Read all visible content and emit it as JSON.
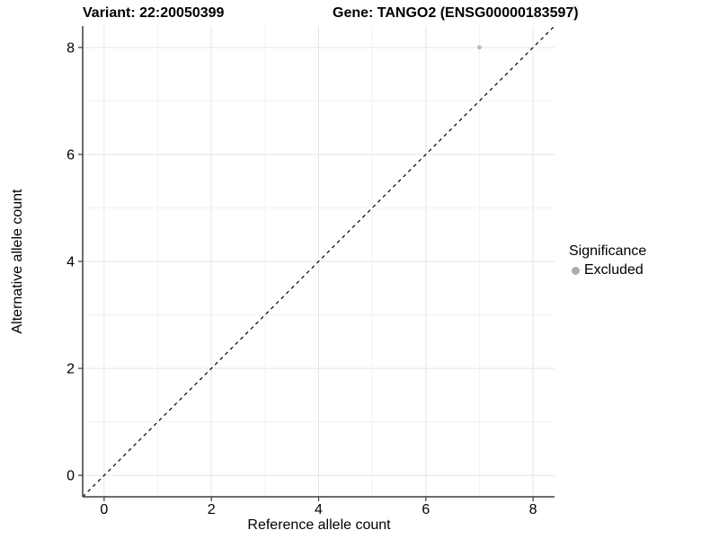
{
  "chart_data": {
    "type": "scatter",
    "title_left": "Variant: 22:20050399",
    "title_right": "Gene: TANGO2 (ENSG00000183597)",
    "xlabel": "Reference allele count",
    "ylabel": "Alternative allele count",
    "xlim": [
      -0.4,
      8.4
    ],
    "ylim": [
      -0.4,
      8.4
    ],
    "x_ticks": [
      0,
      2,
      4,
      6,
      8
    ],
    "y_ticks": [
      0,
      2,
      4,
      6,
      8
    ],
    "minor_grid_positions": [
      1,
      3,
      5,
      7
    ],
    "grid": {
      "major": true,
      "minor": true
    },
    "points": [
      {
        "x": 7,
        "y": 8,
        "series": "Excluded",
        "color": "#b8b8b8"
      }
    ],
    "reference_line": {
      "type": "identity",
      "linetype": "dashed",
      "color": "#000000"
    },
    "legend_position": "right",
    "background": "#ffffff"
  },
  "legend": {
    "title": "Significance",
    "items": [
      {
        "label": "Excluded",
        "color": "#adadad"
      }
    ]
  },
  "colors": {
    "axis_line": "#3c3c3c",
    "tick_label": "#000000",
    "major_grid": "#e5e5e5",
    "minor_grid": "#f2f2f2"
  }
}
